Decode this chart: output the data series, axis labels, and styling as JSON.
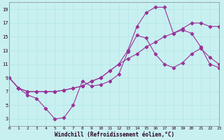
{
  "xlabel": "Windchill (Refroidissement éolien,°C)",
  "bg_color": "#c8f0f0",
  "grid_color": "#b8e8e8",
  "line_color": "#993399",
  "xlim": [
    0,
    23
  ],
  "ylim": [
    2,
    20
  ],
  "xticks": [
    0,
    1,
    2,
    3,
    4,
    5,
    6,
    7,
    8,
    9,
    10,
    11,
    12,
    13,
    14,
    15,
    16,
    17,
    18,
    19,
    20,
    21,
    22,
    23
  ],
  "yticks": [
    3,
    5,
    7,
    9,
    11,
    13,
    15,
    17,
    19
  ],
  "line1_x": [
    0,
    1,
    2,
    3,
    4,
    5,
    6,
    7,
    8,
    9,
    10,
    11,
    12,
    13,
    14,
    15,
    16,
    17,
    18,
    19,
    20,
    21,
    22,
    23
  ],
  "line1_y": [
    9.0,
    7.5,
    6.5,
    6.0,
    4.5,
    3.0,
    3.2,
    5.0,
    8.5,
    7.8,
    8.0,
    8.5,
    9.5,
    12.8,
    15.2,
    14.8,
    12.5,
    11.0,
    10.5,
    11.2,
    12.5,
    13.3,
    12.0,
    11.0
  ],
  "line2_x": [
    0,
    1,
    2,
    3,
    4,
    5,
    6,
    7,
    8,
    9,
    10,
    11,
    12,
    13,
    14,
    15,
    16,
    17,
    18,
    19,
    20,
    21,
    22,
    23
  ],
  "line2_y": [
    9.0,
    7.5,
    7.0,
    7.0,
    7.0,
    7.0,
    7.2,
    7.5,
    7.8,
    8.5,
    9.0,
    10.0,
    11.0,
    13.0,
    16.5,
    18.5,
    19.3,
    19.3,
    15.5,
    16.0,
    15.5,
    13.5,
    11.0,
    10.5
  ],
  "line3_x": [
    0,
    1,
    2,
    3,
    4,
    5,
    6,
    7,
    8,
    9,
    10,
    11,
    12,
    13,
    14,
    15,
    16,
    17,
    18,
    19,
    20,
    21,
    22,
    23
  ],
  "line3_y": [
    9.0,
    7.5,
    7.0,
    7.0,
    7.0,
    7.0,
    7.2,
    7.5,
    7.8,
    8.5,
    9.0,
    10.0,
    11.0,
    11.8,
    12.5,
    13.5,
    14.2,
    15.0,
    15.5,
    16.2,
    17.0,
    17.0,
    16.5,
    16.5
  ]
}
